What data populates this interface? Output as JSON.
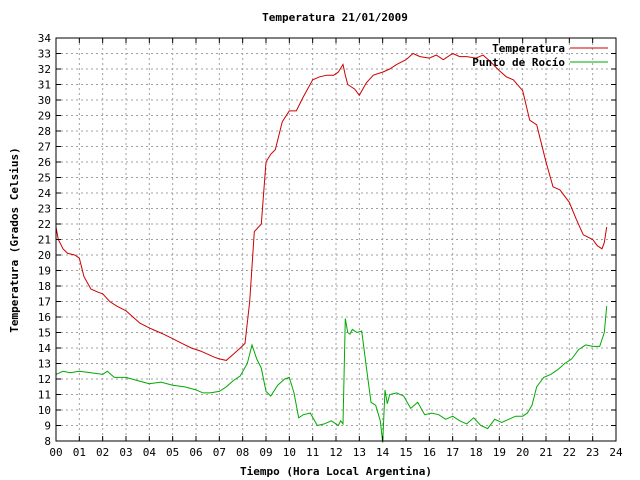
{
  "chart_data": {
    "type": "line",
    "title": "Temperatura 21/01/2009",
    "xlabel": "Tiempo (Hora Local Argentina)",
    "ylabel": "Temperatura (Grados Celsius)",
    "xlim": [
      0,
      24
    ],
    "ylim": [
      8,
      34
    ],
    "xticks": [
      "00",
      "01",
      "02",
      "03",
      "04",
      "05",
      "06",
      "07",
      "08",
      "09",
      "10",
      "11",
      "12",
      "13",
      "14",
      "15",
      "16",
      "17",
      "18",
      "19",
      "20",
      "21",
      "22",
      "23",
      "24"
    ],
    "yticks": [
      8,
      9,
      10,
      11,
      12,
      13,
      14,
      15,
      16,
      17,
      18,
      19,
      20,
      21,
      22,
      23,
      24,
      25,
      26,
      27,
      28,
      29,
      30,
      31,
      32,
      33,
      34
    ],
    "grid": true,
    "legend_position": "top-right",
    "series": [
      {
        "name": "Temperatura",
        "color": "#cc0000",
        "x": [
          0.0,
          0.1,
          0.3,
          0.5,
          0.8,
          1.0,
          1.2,
          1.5,
          1.8,
          2.0,
          2.3,
          2.6,
          3.0,
          3.3,
          3.6,
          4.0,
          4.3,
          4.6,
          5.0,
          5.4,
          5.8,
          6.2,
          6.5,
          6.8,
          7.0,
          7.3,
          7.6,
          7.9,
          8.1,
          8.3,
          8.5,
          8.8,
          9.0,
          9.2,
          9.4,
          9.7,
          10.0,
          10.3,
          10.6,
          11.0,
          11.3,
          11.6,
          11.9,
          12.1,
          12.3,
          12.4,
          12.5,
          12.8,
          13.0,
          13.3,
          13.6,
          14.0,
          14.3,
          14.6,
          15.0,
          15.3,
          15.6,
          16.0,
          16.3,
          16.6,
          17.0,
          17.3,
          17.6,
          18.0,
          18.3,
          18.6,
          19.0,
          19.3,
          19.6,
          20.0,
          20.3,
          20.6,
          21.0,
          21.3,
          21.6,
          22.0,
          22.3,
          22.6,
          23.0,
          23.2,
          23.4,
          23.5,
          23.6
        ],
        "y": [
          21.8,
          21.0,
          20.4,
          20.1,
          20.0,
          19.8,
          18.6,
          17.8,
          17.6,
          17.5,
          17.0,
          16.7,
          16.4,
          16.0,
          15.6,
          15.3,
          15.1,
          14.9,
          14.6,
          14.3,
          14.0,
          13.8,
          13.6,
          13.4,
          13.3,
          13.2,
          13.6,
          14.0,
          14.3,
          17.0,
          21.5,
          22.0,
          26.0,
          26.5,
          26.8,
          28.6,
          29.3,
          29.3,
          30.2,
          31.3,
          31.5,
          31.6,
          31.6,
          31.8,
          32.3,
          31.6,
          31.0,
          30.7,
          30.3,
          31.1,
          31.6,
          31.8,
          32.0,
          32.3,
          32.6,
          33.0,
          32.8,
          32.7,
          32.9,
          32.6,
          33.0,
          32.8,
          32.8,
          32.7,
          32.9,
          32.5,
          31.9,
          31.5,
          31.3,
          30.6,
          28.7,
          28.4,
          26.0,
          24.4,
          24.2,
          23.4,
          22.3,
          21.3,
          21.0,
          20.6,
          20.4,
          20.8,
          21.8
        ]
      },
      {
        "name": "Punto de Rocío",
        "color": "#00aa00",
        "x": [
          0.0,
          0.3,
          0.6,
          1.0,
          1.5,
          2.0,
          2.2,
          2.5,
          3.0,
          3.5,
          4.0,
          4.5,
          5.0,
          5.5,
          6.0,
          6.3,
          6.6,
          7.0,
          7.3,
          7.6,
          7.9,
          8.2,
          8.4,
          8.6,
          8.8,
          9.0,
          9.2,
          9.5,
          9.8,
          10.0,
          10.2,
          10.4,
          10.6,
          10.9,
          11.2,
          11.5,
          11.8,
          12.1,
          12.2,
          12.3,
          12.4,
          12.5,
          12.6,
          12.7,
          12.9,
          13.1,
          13.3,
          13.5,
          13.7,
          13.9,
          14.0,
          14.1,
          14.2,
          14.3,
          14.6,
          14.9,
          15.2,
          15.5,
          15.8,
          16.1,
          16.4,
          16.7,
          17.0,
          17.3,
          17.6,
          17.9,
          18.2,
          18.5,
          18.8,
          19.1,
          19.4,
          19.7,
          20.0,
          20.2,
          20.4,
          20.6,
          20.9,
          21.2,
          21.5,
          21.8,
          22.1,
          22.4,
          22.7,
          23.0,
          23.3,
          23.5,
          23.6
        ],
        "y": [
          12.3,
          12.5,
          12.4,
          12.5,
          12.4,
          12.3,
          12.5,
          12.1,
          12.1,
          11.9,
          11.7,
          11.8,
          11.6,
          11.5,
          11.3,
          11.1,
          11.1,
          11.2,
          11.5,
          11.9,
          12.2,
          13.0,
          14.2,
          13.3,
          12.7,
          11.2,
          10.9,
          11.6,
          12.0,
          12.1,
          11.1,
          9.5,
          9.7,
          9.8,
          9.0,
          9.1,
          9.3,
          9.0,
          9.3,
          9.1,
          15.9,
          15.0,
          14.9,
          15.2,
          15.0,
          15.1,
          12.8,
          10.5,
          10.3,
          9.3,
          7.9,
          11.3,
          10.4,
          11.0,
          11.1,
          10.9,
          10.1,
          10.5,
          9.7,
          9.8,
          9.7,
          9.4,
          9.6,
          9.3,
          9.1,
          9.5,
          9.0,
          8.8,
          9.4,
          9.2,
          9.4,
          9.6,
          9.6,
          9.8,
          10.3,
          11.5,
          12.1,
          12.3,
          12.6,
          13.0,
          13.3,
          13.9,
          14.2,
          14.1,
          14.1,
          15.0,
          16.7
        ]
      }
    ]
  }
}
